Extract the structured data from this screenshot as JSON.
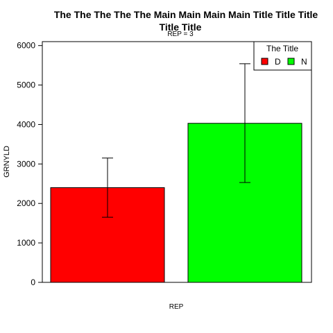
{
  "chart_data": {
    "type": "bar",
    "title_lines": [
      "The The The The The Main Main Main Main Title Title Title",
      "Title Title"
    ],
    "subtitle": "REP = 3",
    "xlabel": "REP",
    "ylabel": "GRNYLD",
    "ylim": [
      0,
      6100
    ],
    "y_ticks": [
      0,
      1000,
      2000,
      3000,
      4000,
      5000,
      6000
    ],
    "grid": false,
    "legend": {
      "title": "The Title",
      "placement": "top-right",
      "entries": [
        {
          "name": "D",
          "color": "#ff0000"
        },
        {
          "name": "N",
          "color": "#00ff00"
        }
      ]
    },
    "series": [
      {
        "name": "D",
        "value": 2400,
        "error_low": 1650,
        "error_high": 3150,
        "color": "#ff0000"
      },
      {
        "name": "N",
        "value": 4030,
        "error_low": 2530,
        "error_high": 5540,
        "color": "#00ff00"
      }
    ]
  }
}
